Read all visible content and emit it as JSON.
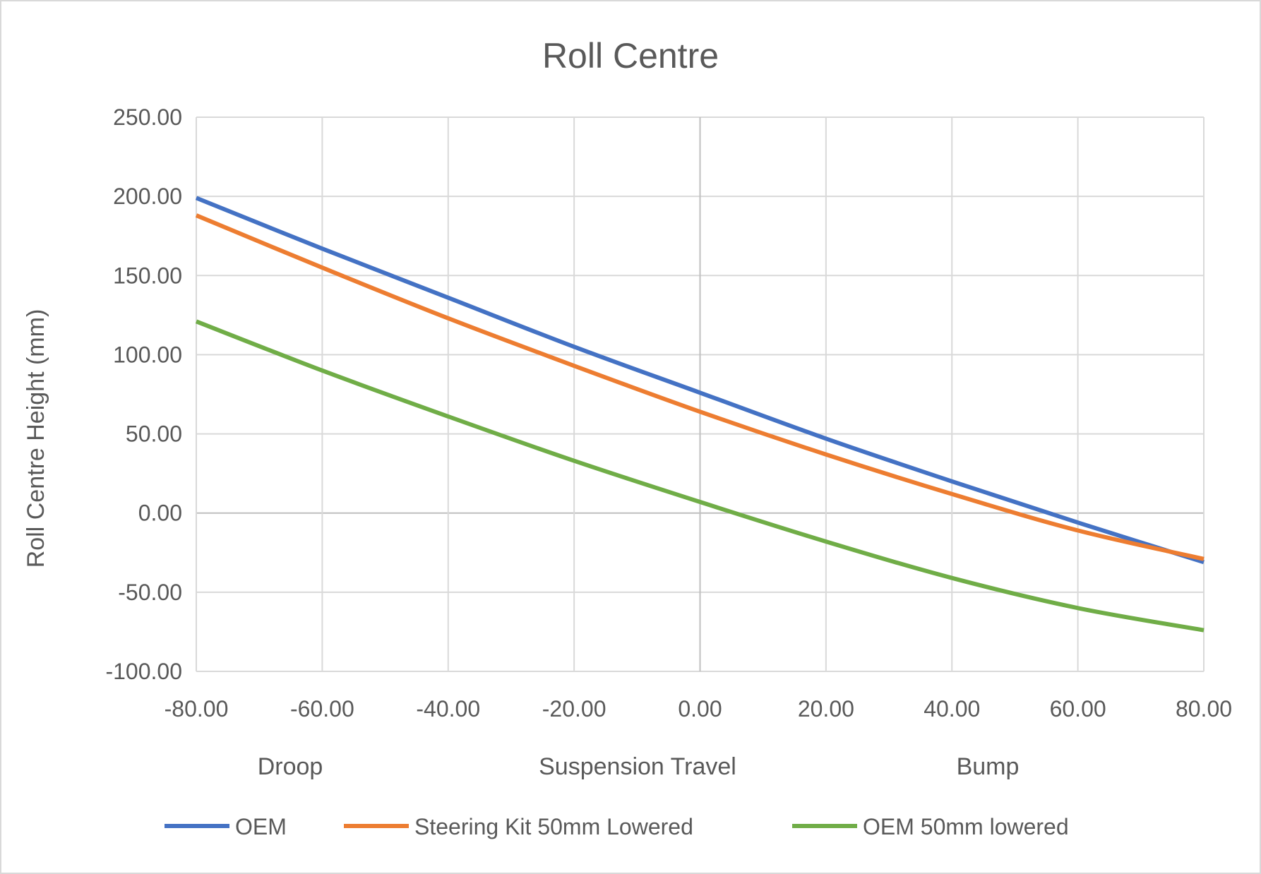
{
  "chart_data": {
    "type": "line",
    "title": "Roll Centre",
    "xlabel": "Suspension Travel",
    "xlabel_left": "Droop",
    "xlabel_right": "Bump",
    "ylabel": "Roll Centre Height (mm)",
    "xlim": [
      -80,
      80
    ],
    "ylim": [
      -100,
      250
    ],
    "xticks": [
      -80,
      -60,
      -40,
      -20,
      0,
      20,
      40,
      60,
      80
    ],
    "yticks": [
      -100,
      -50,
      0,
      50,
      100,
      150,
      200,
      250
    ],
    "grid": true,
    "legend_position": "bottom",
    "x": [
      -80,
      -60,
      -40,
      -20,
      0,
      20,
      40,
      60,
      80
    ],
    "series": [
      {
        "name": "OEM",
        "color": "#4472C4",
        "values": [
          199,
          167,
          136,
          105,
          76,
          47,
          20,
          -6,
          -31
        ]
      },
      {
        "name": "Steering Kit 50mm Lowered",
        "color": "#ED7D31",
        "values": [
          188,
          155,
          123,
          93,
          64,
          37,
          12,
          -11,
          -29
        ]
      },
      {
        "name": "OEM 50mm lowered",
        "color": "#70AD47",
        "values": [
          121,
          90,
          61,
          33,
          7,
          -18,
          -41,
          -60,
          -74
        ]
      }
    ]
  }
}
